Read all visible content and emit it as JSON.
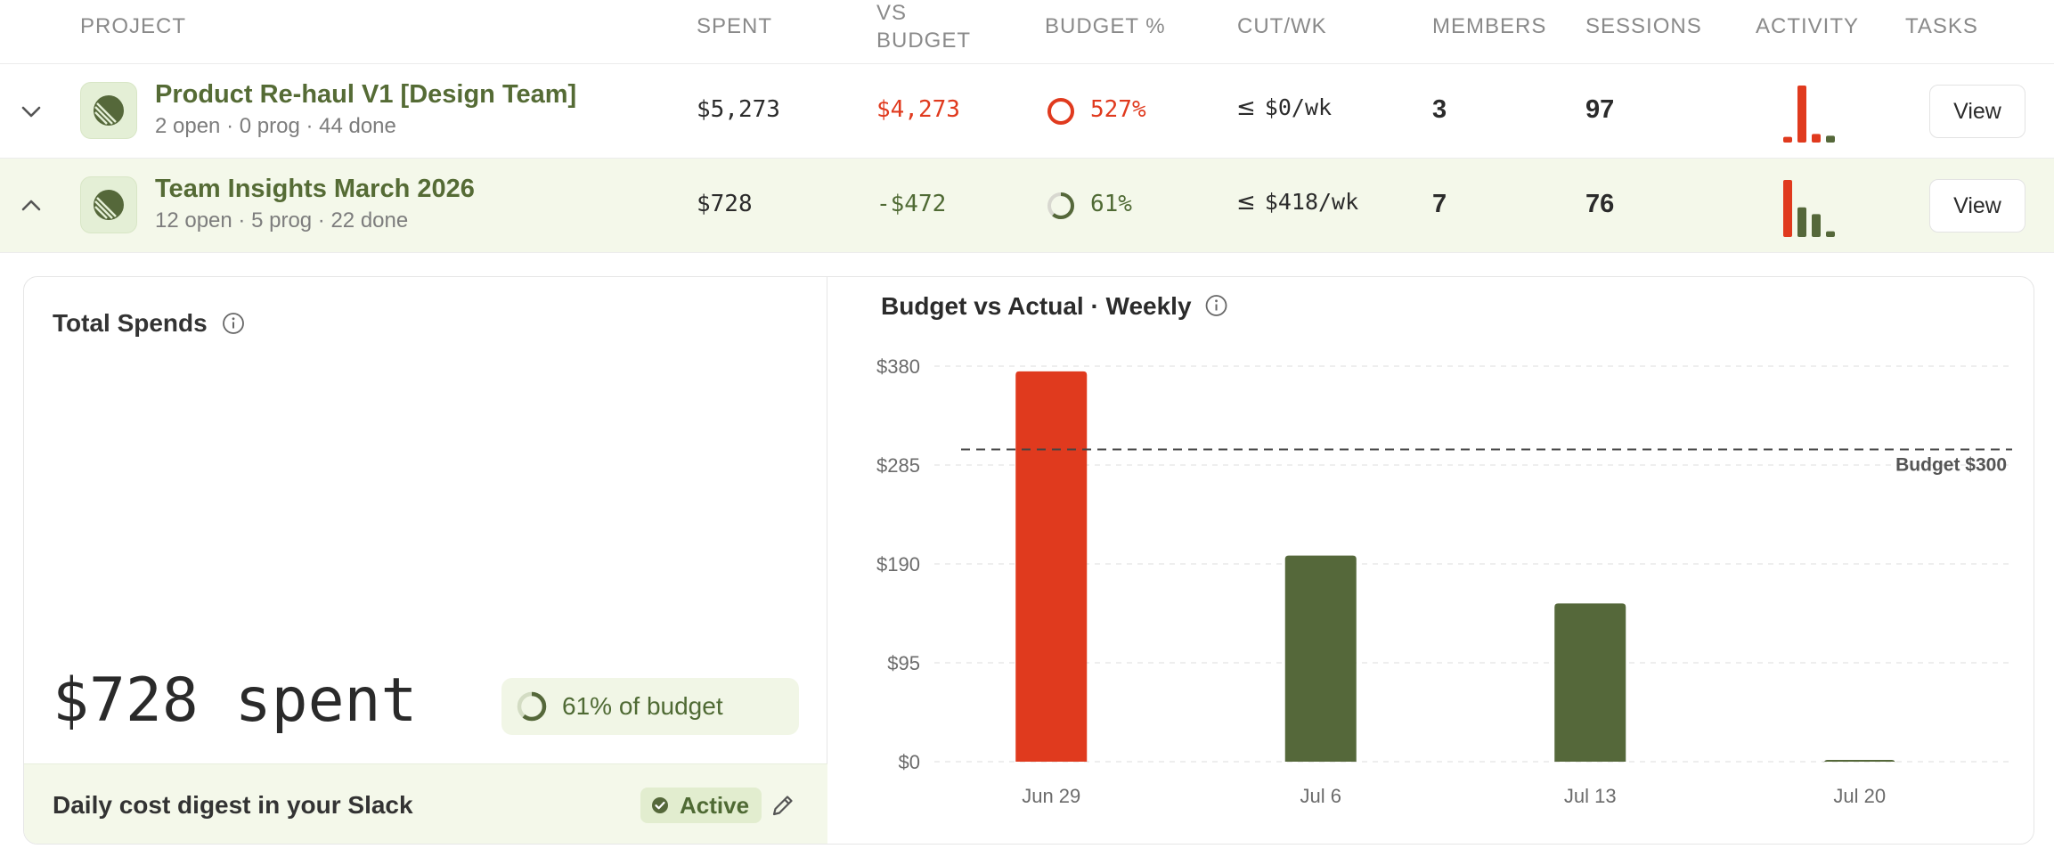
{
  "columns": {
    "project": "PROJECT",
    "spent": "SPENT",
    "vs_budget_1": "VS",
    "vs_budget_2": "BUDGET",
    "budget_pct": "BUDGET %",
    "cut_wk": "CUT/WK",
    "members": "MEMBERS",
    "sessions": "SESSIONS",
    "activity": "ACTIVITY",
    "tasks": "TASKS"
  },
  "rows": [
    {
      "title": "Product Re-haul V1 [Design Team]",
      "subtitle": "2 open · 0 prog · 44 done",
      "spent": "$5,273",
      "vs_budget": "$4,273",
      "budget_pct": "527%",
      "budget_fraction": 1.0,
      "cut_prefix": "≤",
      "cut_value": "$0/wk",
      "members": "3",
      "sessions": "97",
      "activity": [
        0.1,
        1.0,
        0.15,
        0.12
      ],
      "activity_colors": [
        "#e03a1e",
        "#e03a1e",
        "#e03a1e",
        "#55683a"
      ],
      "view_label": "View",
      "expanded": false
    },
    {
      "title": "Team Insights March 2026",
      "subtitle": "12 open · 5 prog · 22 done",
      "spent": "$728",
      "vs_budget": "-$472",
      "budget_pct": "61%",
      "budget_fraction": 0.61,
      "cut_prefix": "≤",
      "cut_value": "$418/wk",
      "members": "7",
      "sessions": "76",
      "activity": [
        1.0,
        0.52,
        0.4,
        0.1
      ],
      "activity_colors": [
        "#e03a1e",
        "#55683a",
        "#55683a",
        "#55683a"
      ],
      "view_label": "View",
      "expanded": true
    }
  ],
  "details": {
    "total_spends_title": "Total Spends",
    "spent_text": "$728 spent",
    "budget_pill": "61% of budget",
    "budget_fraction": 0.61,
    "slack_text": "Daily cost digest in your Slack",
    "status_label": "Active"
  },
  "colors": {
    "accent_green": "#55683a",
    "over_budget_red": "#e03a1e",
    "row_highlight": "#f4f8ea"
  },
  "chart_data": {
    "type": "bar",
    "title": "Budget vs Actual · Weekly",
    "categories": [
      "Jun 29",
      "Jul 6",
      "Jul 13",
      "Jul 20"
    ],
    "values": [
      375,
      198,
      152,
      1
    ],
    "bar_colors": [
      "#e03a1e",
      "#55683a",
      "#55683a",
      "#55683a"
    ],
    "yticks": [
      0,
      95,
      190,
      285,
      380
    ],
    "ytick_labels": [
      "$0",
      "$95",
      "$190",
      "$285",
      "$380"
    ],
    "ylim": [
      0,
      380
    ],
    "budget_line": 300,
    "budget_label": "Budget $300",
    "grid": true
  }
}
